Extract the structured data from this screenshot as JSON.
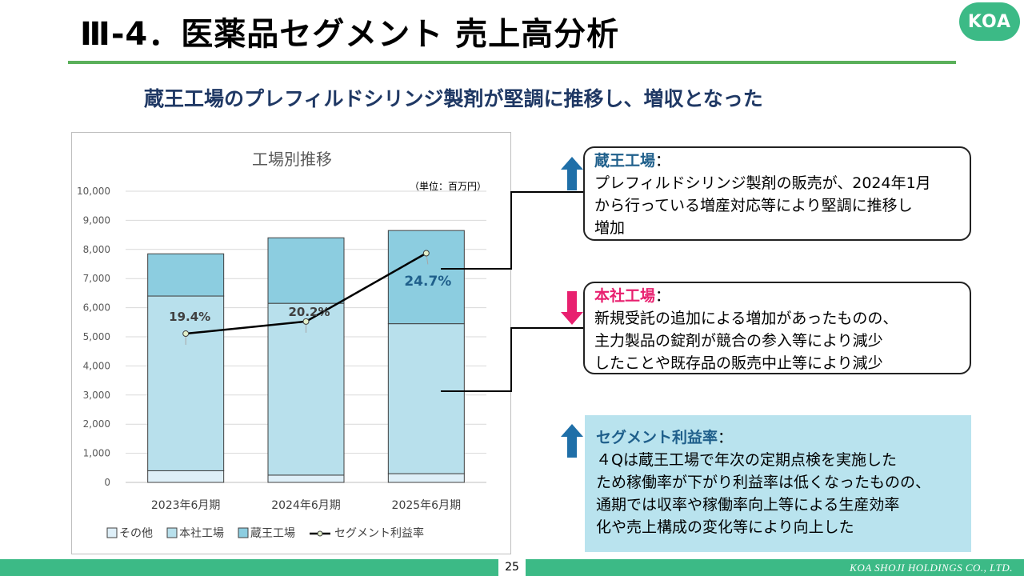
{
  "header": {
    "title": "Ⅲ-4．医薬品セグメント 売上高分析",
    "logo_text": "KOA",
    "subtitle": "蔵王工場のプレフィルドシリンジ製剤が堅調に推移し、増収となった"
  },
  "callouts": [
    {
      "head": "蔵王工場",
      "colon": "：",
      "head_color": "#1f5f8b",
      "arrow": "up-arrow-icon",
      "lines": [
        "プレフィルドシリンジ製剤の販売が、2024年1月",
        "から行っている増産対応等により堅調に推移し",
        "増加"
      ]
    },
    {
      "head": "本社工場",
      "colon": "：",
      "head_color": "#e8206f",
      "arrow": "down-arrow-icon",
      "lines": [
        "新規受託の追加による増加があったものの、",
        "主力製品の錠剤が競合の参入等により減少",
        "したことや既存品の販売中止等により減少"
      ]
    },
    {
      "head": "セグメント利益率",
      "colon": "：",
      "head_color": "#1f5f8b",
      "arrow": "up-arrow-icon",
      "lines": [
        "４Qは蔵王工場で年次の定期点検を実施した",
        "ため稼働率が下がり利益率は低くなったものの、",
        "通期では収率や稼働率向上等による生産効率",
        "化や売上構成の変化等により向上した"
      ]
    }
  ],
  "colors": {
    "arrow_up": "#1f6fa8",
    "arrow_down": "#e8206f",
    "accent_green": "#3cba86"
  },
  "chart_data": {
    "type": "bar",
    "stacked": true,
    "title": "工場別推移",
    "unit_note": "（単位：百万円）",
    "categories": [
      "2023年6月期",
      "2024年6月期",
      "2025年6月期"
    ],
    "ylim": [
      0,
      10000
    ],
    "yticks": [
      "0",
      "1,000",
      "2,000",
      "3,000",
      "4,000",
      "5,000",
      "6,000",
      "7,000",
      "8,000",
      "9,000",
      "10,000"
    ],
    "grid": true,
    "legend_position": "bottom",
    "series": [
      {
        "name": "その他",
        "values": [
          400,
          250,
          300
        ],
        "color": "#deeff8"
      },
      {
        "name": "本社工場",
        "values": [
          6000,
          5900,
          5150
        ],
        "color": "#b8e0ec"
      },
      {
        "name": "蔵王工場",
        "values": [
          1450,
          2250,
          3200
        ],
        "color": "#8ccde0"
      }
    ],
    "line_series": {
      "name": "セグメント利益率",
      "values": [
        19.4,
        20.2,
        24.7
      ],
      "labels": [
        "19.4%",
        "20.2%",
        "24.7%"
      ]
    }
  },
  "footer": {
    "page_number": "25",
    "company": "KOA SHOJI HOLDINGS CO., LTD."
  }
}
